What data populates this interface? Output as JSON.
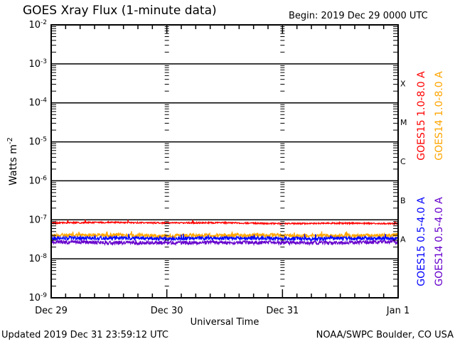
{
  "chart_data": {
    "type": "line",
    "title": "GOES Xray Flux (1-minute data)",
    "begin_label": "Begin:  2019 Dec 29 0000 UTC",
    "ylabel": "Watts m",
    "ylabel_sup": "-2",
    "xlabel": "Universal Time",
    "yscale": "log",
    "ylim": [
      1e-09,
      0.01
    ],
    "xlim_days": [
      0,
      3
    ],
    "y_ticks": [
      {
        "base": "10",
        "exp": "-2",
        "value": 0.01
      },
      {
        "base": "10",
        "exp": "-3",
        "value": 0.001
      },
      {
        "base": "10",
        "exp": "-4",
        "value": 0.0001
      },
      {
        "base": "10",
        "exp": "-5",
        "value": 1e-05
      },
      {
        "base": "10",
        "exp": "-6",
        "value": 1e-06
      },
      {
        "base": "10",
        "exp": "-7",
        "value": 1e-07
      },
      {
        "base": "10",
        "exp": "-8",
        "value": 1e-08
      },
      {
        "base": "10",
        "exp": "-9",
        "value": 1e-09
      }
    ],
    "x_ticks": [
      {
        "label": "Dec 29",
        "day": 0
      },
      {
        "label": "Dec 30",
        "day": 1
      },
      {
        "label": "Dec 31",
        "day": 2
      },
      {
        "label": "Jan 1",
        "day": 3
      }
    ],
    "flare_classes": [
      {
        "label": "X",
        "value": 0.000316
      },
      {
        "label": "M",
        "value": 3.16e-05
      },
      {
        "label": "C",
        "value": 3.16e-06
      },
      {
        "label": "B",
        "value": 3.16e-07
      },
      {
        "label": "A",
        "value": 3.16e-08
      }
    ],
    "grid_lines": [
      0.001,
      0.0001,
      1e-05,
      1e-06,
      1e-07,
      1e-08
    ],
    "series": [
      {
        "name": "GOES15 1.0-8.0 A",
        "color": "#ff0000",
        "legend": "right-upper-inner",
        "x_days": [
          0,
          0.5,
          1,
          1.5,
          2,
          2.5,
          3
        ],
        "values": [
          8.3e-08,
          8.6e-08,
          8.3e-08,
          8.4e-08,
          8e-08,
          8.2e-08,
          8e-08
        ]
      },
      {
        "name": "GOES14 1.0-8.0 A",
        "color": "#ffa500",
        "legend": "right-upper-outer",
        "x_days": [
          0,
          0.5,
          1,
          1.5,
          2,
          2.5,
          3
        ],
        "values": [
          4e-08,
          4.1e-08,
          3.9e-08,
          4e-08,
          4e-08,
          3.9e-08,
          4e-08
        ]
      },
      {
        "name": "GOES15 0.5-4.0 A",
        "color": "#0000ff",
        "legend": "right-lower-inner",
        "x_days": [
          0,
          0.5,
          1,
          1.5,
          2,
          2.5,
          3
        ],
        "values": [
          3.4e-08,
          3.4e-08,
          3.3e-08,
          3.4e-08,
          3.3e-08,
          3.3e-08,
          3.4e-08
        ]
      },
      {
        "name": "GOES14 0.5-4.0 A",
        "color": "#6600cc",
        "legend": "right-lower-outer",
        "x_days": [
          0,
          0.5,
          1,
          1.5,
          2,
          2.5,
          3
        ],
        "values": [
          2.7e-08,
          2.6e-08,
          2.6e-08,
          2.6e-08,
          2.6e-08,
          2.6e-08,
          2.7e-08
        ]
      }
    ]
  },
  "footer": {
    "updated": "Updated 2019 Dec 31 23:59:12 UTC",
    "credit": "NOAA/SWPC Boulder, CO USA"
  }
}
